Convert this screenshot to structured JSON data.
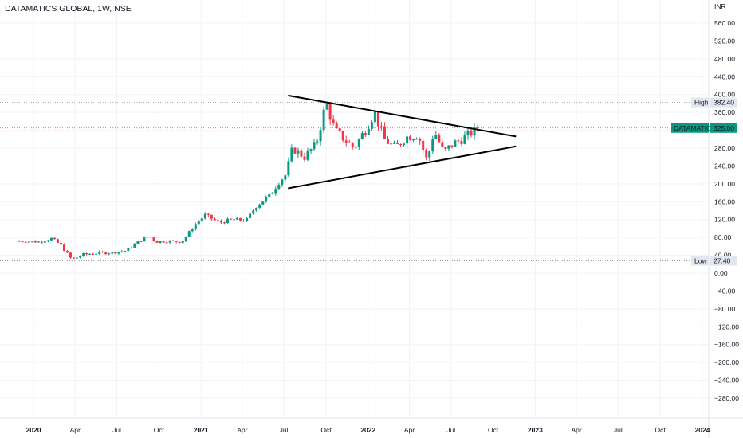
{
  "title": "DATAMATICS GLOBAL, 1W, NSE",
  "chart_data": {
    "type": "candlestick",
    "symbol": "DATAMATICS GLOBAL",
    "interval": "1W",
    "exchange": "NSE",
    "currency": "INR",
    "ylim": [
      -290,
      580
    ],
    "yticks": [
      560,
      520,
      480,
      440,
      400,
      360,
      320,
      280,
      240,
      200,
      160,
      120,
      80,
      40,
      0,
      -40,
      -80,
      -120,
      -160,
      -200,
      -240,
      -280
    ],
    "ytick_labels": [
      "560.00",
      "520.00",
      "480.00",
      "440.00",
      "400.00",
      "360.00",
      "320.00",
      "280.00",
      "240.00",
      "200.00",
      "160.00",
      "120.00",
      "80.00",
      "40.00",
      "0.00",
      "−40.00",
      "−80.00",
      "−120.00",
      "−160.00",
      "−200.00",
      "−240.00",
      "−280.00"
    ],
    "x_range": [
      "2019-12-01",
      "2024-01-05"
    ],
    "xticks": [
      {
        "label": "2020",
        "date": "2020-01-01",
        "bold": true
      },
      {
        "label": "Apr",
        "date": "2020-04-01"
      },
      {
        "label": "Jul",
        "date": "2020-07-01"
      },
      {
        "label": "Oct",
        "date": "2020-10-01"
      },
      {
        "label": "2021",
        "date": "2021-01-01",
        "bold": true
      },
      {
        "label": "Apr",
        "date": "2021-04-01"
      },
      {
        "label": "Jul",
        "date": "2021-07-01"
      },
      {
        "label": "Oct",
        "date": "2021-10-01"
      },
      {
        "label": "2022",
        "date": "2022-01-01",
        "bold": true
      },
      {
        "label": "Apr",
        "date": "2022-04-01"
      },
      {
        "label": "Jul",
        "date": "2022-07-01"
      },
      {
        "label": "Oct",
        "date": "2022-10-01"
      },
      {
        "label": "2023",
        "date": "2023-01-01",
        "bold": true
      },
      {
        "label": "Apr",
        "date": "2023-04-01"
      },
      {
        "label": "Jul",
        "date": "2023-07-01"
      },
      {
        "label": "Oct",
        "date": "2023-10-01"
      },
      {
        "label": "2024",
        "date": "2024-01-01",
        "bold": true
      }
    ],
    "price_series": [
      [
        "2019-12-01",
        72
      ],
      [
        "2020-01-15",
        70
      ],
      [
        "2020-02-10",
        78
      ],
      [
        "2020-03-01",
        62
      ],
      [
        "2020-03-25",
        30
      ],
      [
        "2020-04-20",
        42
      ],
      [
        "2020-05-20",
        45
      ],
      [
        "2020-06-20",
        46
      ],
      [
        "2020-07-20",
        50
      ],
      [
        "2020-08-20",
        72
      ],
      [
        "2020-09-10",
        84
      ],
      [
        "2020-09-25",
        70
      ],
      [
        "2020-10-20",
        72
      ],
      [
        "2020-11-20",
        70
      ],
      [
        "2020-12-20",
        110
      ],
      [
        "2021-01-10",
        130
      ],
      [
        "2021-02-10",
        113
      ],
      [
        "2021-03-10",
        120
      ],
      [
        "2021-04-10",
        118
      ],
      [
        "2021-05-01",
        150
      ],
      [
        "2021-06-01",
        175
      ],
      [
        "2021-06-20",
        205
      ],
      [
        "2021-07-05",
        220
      ],
      [
        "2021-07-20",
        280
      ],
      [
        "2021-08-15",
        260
      ],
      [
        "2021-09-10",
        290
      ],
      [
        "2021-10-01",
        382
      ],
      [
        "2021-10-20",
        320
      ],
      [
        "2021-11-10",
        300
      ],
      [
        "2021-12-01",
        280
      ],
      [
        "2021-12-25",
        320
      ],
      [
        "2022-01-15",
        360
      ],
      [
        "2022-02-05",
        300
      ],
      [
        "2022-03-01",
        280
      ],
      [
        "2022-03-25",
        305
      ],
      [
        "2022-04-20",
        310
      ],
      [
        "2022-05-10",
        250
      ],
      [
        "2022-05-25",
        320
      ],
      [
        "2022-06-15",
        270
      ],
      [
        "2022-07-05",
        290
      ],
      [
        "2022-07-25",
        300
      ],
      [
        "2022-08-15",
        315
      ],
      [
        "2022-09-01",
        325
      ]
    ],
    "high": {
      "label": "High",
      "value": "382.40",
      "level": 382.4
    },
    "low": {
      "label": "Low",
      "value": "27.40",
      "level": 27.4
    },
    "last": {
      "label": "DATAMATICS",
      "value": "325.00",
      "level": 325
    },
    "trendlines": [
      {
        "name": "upper",
        "from": [
          "2021-07-10",
          398
        ],
        "to": [
          "2022-11-20",
          306
        ]
      },
      {
        "name": "lower",
        "from": [
          "2021-07-10",
          190
        ],
        "to": [
          "2022-11-20",
          284
        ]
      }
    ],
    "colors": {
      "up": "#089981",
      "down": "#f23645",
      "trendline": "#000000",
      "grid": "#f0f3fa",
      "high_low_line": "#787b86",
      "last_line": "#f23645"
    }
  }
}
